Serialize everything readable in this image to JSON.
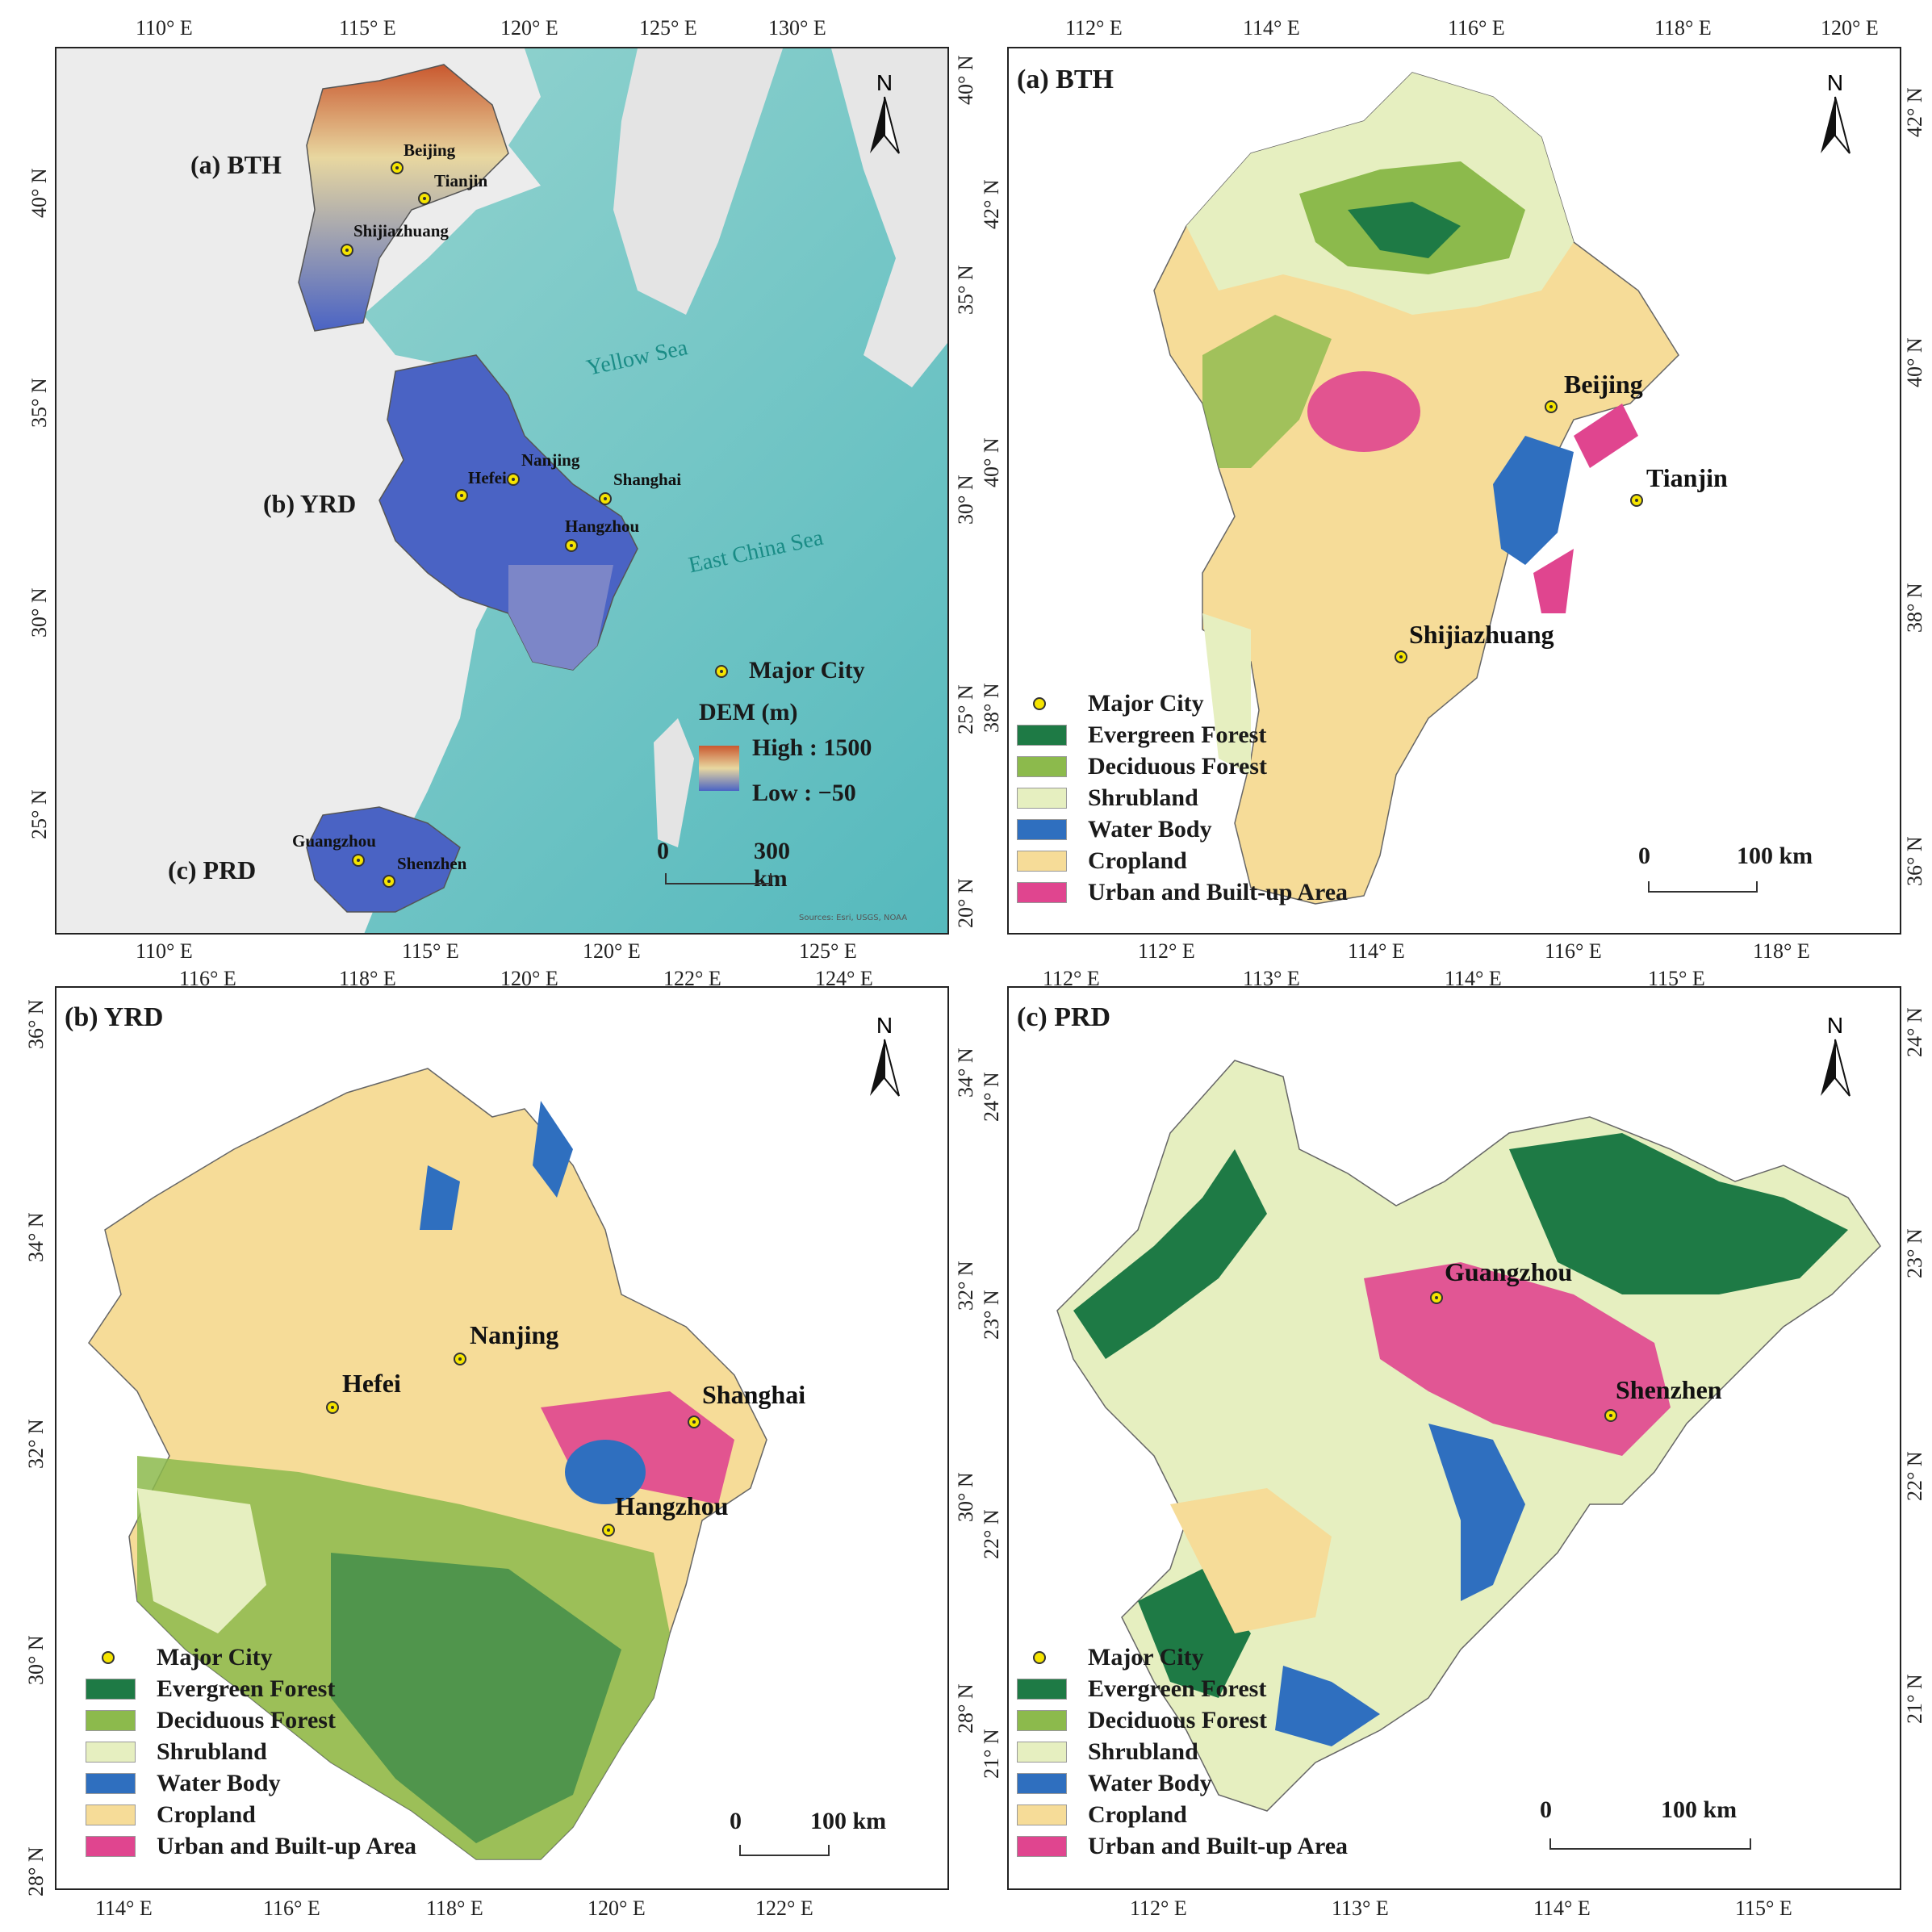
{
  "panels": {
    "overview": {
      "top_ticks": [
        "110° E",
        "115° E",
        "120° E",
        "125° E",
        "130° E"
      ],
      "bottom_ticks": [
        "110° E",
        "115° E",
        "120° E",
        "125° E"
      ],
      "left_ticks": [
        "40° N",
        "35° N",
        "30° N",
        "25° N"
      ],
      "right_ticks": [
        "40° N",
        "35° N",
        "30° N",
        "25° N",
        "20° N"
      ],
      "regions": [
        "(a) BTH",
        "(b) YRD",
        "(c) PRD"
      ],
      "seas": [
        "Yellow Sea",
        "East China Sea"
      ],
      "cities": [
        "Beijing",
        "Tianjin",
        "Shijiazhuang",
        "Hefei",
        "Nanjing",
        "Shanghai",
        "Hangzhou",
        "Guangzhou",
        "Shenzhen"
      ],
      "legend": {
        "city": "Major City",
        "dem_title": "DEM (m)",
        "high": "High : 1500",
        "low": "Low : −50"
      },
      "scale": {
        "zero": "0",
        "end": "300 km"
      },
      "credit": "Sources: Esri, USGS, NOAA",
      "north": "N"
    },
    "bth": {
      "title": "(a) BTH",
      "top_ticks": [
        "112° E",
        "114° E",
        "116° E",
        "118° E",
        "120° E"
      ],
      "bottom_ticks": [
        "112° E",
        "114° E",
        "116° E",
        "118° E"
      ],
      "left_ticks": [
        "42° N",
        "40° N",
        "38° N"
      ],
      "right_ticks": [
        "42° N",
        "40° N",
        "38° N",
        "36° N"
      ],
      "cities": [
        "Beijing",
        "Tianjin",
        "Shijiazhuang"
      ],
      "scale": {
        "zero": "0",
        "end": "100 km"
      },
      "north": "N"
    },
    "yrd": {
      "title": "(b) YRD",
      "top_ticks": [
        "116° E",
        "118° E",
        "120° E",
        "122° E",
        "124° E"
      ],
      "bottom_ticks": [
        "114° E",
        "116° E",
        "118° E",
        "120° E",
        "122° E"
      ],
      "left_ticks": [
        "36° N",
        "34° N",
        "32° N",
        "30° N",
        "28° N"
      ],
      "right_ticks": [
        "34° N",
        "32° N",
        "30° N",
        "28° N"
      ],
      "cities": [
        "Hefei",
        "Nanjing",
        "Shanghai",
        "Hangzhou"
      ],
      "scale": {
        "zero": "0",
        "end": "100 km"
      },
      "north": "N"
    },
    "prd": {
      "title": "(c) PRD",
      "top_ticks": [
        "112° E",
        "113° E",
        "114° E",
        "115° E"
      ],
      "bottom_ticks": [
        "112° E",
        "113° E",
        "114° E",
        "115° E"
      ],
      "left_ticks": [
        "24° N",
        "23° N",
        "22° N",
        "21° N"
      ],
      "right_ticks": [
        "24° N",
        "23° N",
        "22° N",
        "21° N"
      ],
      "cities": [
        "Guangzhou",
        "Shenzhen"
      ],
      "scale": {
        "zero": "0",
        "end": "100 km"
      },
      "north": "N"
    }
  },
  "landcover_legend": {
    "city": "Major City",
    "classes": [
      {
        "label": "Evergreen Forest",
        "color": "#1e7a45"
      },
      {
        "label": "Deciduous Forest",
        "color": "#8cba4c"
      },
      {
        "label": "Shrubland",
        "color": "#e6efc0"
      },
      {
        "label": "Water Body",
        "color": "#2f6fbf"
      },
      {
        "label": "Cropland",
        "color": "#f6dc98"
      },
      {
        "label": "Urban and Built-up Area",
        "color": "#e0458f"
      }
    ]
  },
  "colors": {
    "sea": "#a9dcd6",
    "deep_sea": "#5bbfc2",
    "land_relief": "#eeeeee",
    "dem_low": "#4a63c4",
    "dem_high": "#c9582f",
    "city_marker": "#f5e400"
  }
}
